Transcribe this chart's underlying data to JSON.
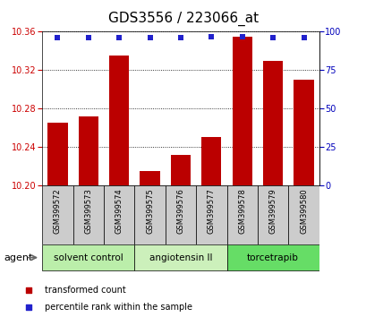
{
  "title": "GDS3556 / 223066_at",
  "samples": [
    "GSM399572",
    "GSM399573",
    "GSM399574",
    "GSM399575",
    "GSM399576",
    "GSM399577",
    "GSM399578",
    "GSM399579",
    "GSM399580"
  ],
  "bar_values": [
    10.265,
    10.272,
    10.335,
    10.215,
    10.232,
    10.25,
    10.355,
    10.33,
    10.31
  ],
  "percentile_values": [
    96,
    96,
    96,
    96,
    96,
    97,
    97,
    96,
    96
  ],
  "ylim": [
    10.2,
    10.36
  ],
  "yticks": [
    10.2,
    10.24,
    10.28,
    10.32,
    10.36
  ],
  "right_yticks": [
    0,
    25,
    50,
    75,
    100
  ],
  "right_ylim": [
    0,
    100
  ],
  "bar_color": "#bb0000",
  "dot_color": "#2222cc",
  "groups": [
    {
      "label": "solvent control",
      "start": 0,
      "end": 2,
      "color": "#bbeeaa"
    },
    {
      "label": "angiotensin II",
      "start": 3,
      "end": 5,
      "color": "#ccf0bb"
    },
    {
      "label": "torcetrapib",
      "start": 6,
      "end": 8,
      "color": "#66dd66"
    }
  ],
  "agent_label": "agent",
  "legend_bar_label": "transformed count",
  "legend_dot_label": "percentile rank within the sample",
  "grid_color": "#000000",
  "background_color": "#ffffff",
  "plot_bg": "#ffffff",
  "tick_label_color_left": "#cc0000",
  "tick_label_color_right": "#0000bb",
  "bar_width": 0.65,
  "title_fontsize": 11,
  "tick_fontsize": 7,
  "label_fontsize": 7.5,
  "sample_box_color": "#cccccc",
  "sample_text_fontsize": 6
}
